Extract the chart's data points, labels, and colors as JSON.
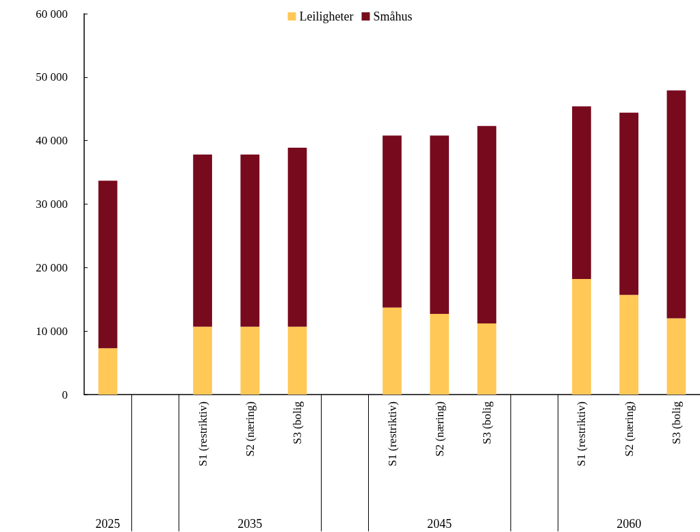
{
  "chart_data": {
    "type": "bar",
    "stacked": true,
    "legend": "top",
    "grid": false,
    "categories": [
      null,
      null,
      "S1 (restriktiv)",
      "S2 (næring)",
      "S3 (bolig",
      null,
      "S1 (restriktiv)",
      "S2 (næring)",
      "S3 (bolig",
      null,
      "S1 (restriktiv)",
      "S2 (næring)",
      "S3 (bolig"
    ],
    "series": [
      {
        "name": "Leiligheter",
        "color": "#ffc857",
        "values": [
          7300,
          null,
          10700,
          10700,
          10700,
          null,
          13700,
          12700,
          11200,
          null,
          18200,
          15700,
          12000
        ]
      },
      {
        "name": "Småhus",
        "color": "#780a1e",
        "values": [
          26400,
          null,
          27100,
          27100,
          28200,
          null,
          27100,
          28100,
          31100,
          null,
          27200,
          28700,
          35900
        ]
      }
    ],
    "ylim": [
      0,
      60000
    ],
    "yticks": [
      {
        "value": 0,
        "label": "0"
      },
      {
        "value": 10000,
        "label": "10 000"
      },
      {
        "value": 20000,
        "label": "20 000"
      },
      {
        "value": 30000,
        "label": "30 000"
      },
      {
        "value": 40000,
        "label": "40 000"
      },
      {
        "value": 50000,
        "label": "50 000"
      },
      {
        "value": 60000,
        "label": "60 000"
      }
    ],
    "annotations": [
      "2025",
      "2035",
      "2045",
      "2060"
    ]
  }
}
